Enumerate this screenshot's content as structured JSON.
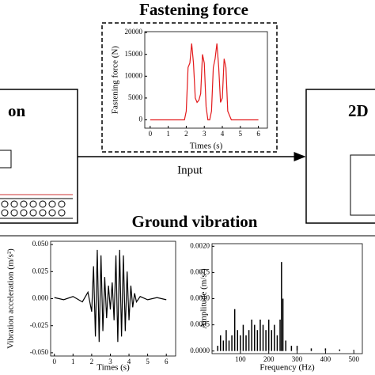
{
  "labels": {
    "fastening_title": "Fastening force",
    "left_box": "on",
    "right_box": "2D",
    "arrow": "Input",
    "ground_title": "Ground vibration"
  },
  "chart_data": [
    {
      "type": "line",
      "xlabel": "Times (s)",
      "ylabel": "Fastening force (N)",
      "color": "#e31a1c",
      "x": [
        0,
        0.5,
        1,
        1.5,
        1.9,
        2.0,
        2.1,
        2.2,
        2.3,
        2.4,
        2.5,
        2.6,
        2.7,
        2.8,
        2.9,
        3.0,
        3.1,
        3.2,
        3.3,
        3.4,
        3.5,
        3.6,
        3.7,
        3.8,
        3.9,
        4.0,
        4.1,
        4.2,
        4.3,
        4.5,
        5,
        5.5,
        6
      ],
      "values": [
        0,
        0,
        0,
        0,
        0,
        2000,
        12000,
        13000,
        17500,
        13000,
        5000,
        4000,
        4500,
        6000,
        15000,
        13000,
        3000,
        0,
        0,
        2000,
        12000,
        14000,
        17500,
        12000,
        4000,
        5000,
        14000,
        12000,
        2000,
        0,
        0,
        0,
        0
      ],
      "xlim": [
        -0.3,
        6.5
      ],
      "ylim": [
        -1900,
        20200
      ],
      "xticks": [
        0,
        1,
        2,
        3,
        4,
        5,
        6
      ],
      "yticks": [
        0,
        5000,
        10000,
        15000,
        20000
      ]
    },
    {
      "type": "line",
      "xlabel": "Times (s)",
      "ylabel": "Vibration acceleration (m/s²)",
      "color": "#000000",
      "x": [
        0,
        0.5,
        1,
        1.5,
        1.8,
        2.0,
        2.1,
        2.2,
        2.3,
        2.4,
        2.5,
        2.6,
        2.7,
        2.8,
        2.9,
        3.0,
        3.1,
        3.2,
        3.3,
        3.4,
        3.5,
        3.6,
        3.7,
        3.8,
        3.9,
        4.0,
        4.1,
        4.2,
        4.3,
        4.4,
        4.6,
        5,
        5.5,
        6
      ],
      "values": [
        0.001,
        -0.001,
        0.002,
        -0.003,
        0.006,
        -0.012,
        0.03,
        -0.035,
        0.045,
        -0.04,
        0.04,
        -0.03,
        0.02,
        -0.018,
        0.012,
        -0.01,
        0.015,
        -0.02,
        0.04,
        -0.04,
        0.045,
        -0.035,
        0.04,
        -0.03,
        0.025,
        -0.02,
        0.012,
        -0.008,
        0.005,
        -0.003,
        0.002,
        -0.001,
        0.001,
        -0.001
      ],
      "xlim": [
        -0.2,
        6.5
      ],
      "ylim": [
        -0.053,
        0.053
      ],
      "xticks": [
        0,
        1,
        2,
        3,
        4,
        5,
        6
      ],
      "yticks": [
        {
          "value": -0.05,
          "label": "-0.050"
        },
        {
          "value": -0.025,
          "label": "-0.025"
        },
        {
          "value": 0,
          "label": "0.000"
        },
        {
          "value": 0.025,
          "label": "0.025"
        },
        {
          "value": 0.05,
          "label": "0.050"
        }
      ]
    },
    {
      "type": "stem",
      "xlabel": "Frequency (Hz)",
      "ylabel": "Amplitude (m/s²)",
      "color": "#000000",
      "x": [
        20,
        30,
        40,
        50,
        60,
        70,
        80,
        90,
        100,
        110,
        120,
        130,
        140,
        150,
        160,
        170,
        180,
        190,
        200,
        210,
        220,
        230,
        240,
        245,
        250,
        260,
        280,
        300,
        350,
        400,
        450,
        500
      ],
      "values": [
        0.0001,
        0.0003,
        0.0002,
        0.0004,
        0.0002,
        0.0003,
        0.0008,
        0.0004,
        0.0003,
        0.0005,
        0.0003,
        0.0004,
        0.0006,
        0.0005,
        0.0004,
        0.0006,
        0.0005,
        0.0004,
        0.0006,
        0.0004,
        0.0005,
        0.0003,
        0.0006,
        0.0017,
        0.001,
        0.0002,
        0.0001,
        0.0001,
        5e-05,
        5e-05,
        3e-05,
        2e-05
      ],
      "xlim": [
        0,
        530
      ],
      "ylim": [
        -5e-05,
        0.00205
      ],
      "xticks": [
        100,
        200,
        300,
        400,
        500
      ],
      "yticks": [
        {
          "value": 0,
          "label": "0.0000"
        },
        {
          "value": 0.0005,
          "label": "0.0005"
        },
        {
          "value": 0.001,
          "label": "0.0010"
        },
        {
          "value": 0.0015,
          "label": "0.0015"
        },
        {
          "value": 0.002,
          "label": "0.0020"
        }
      ]
    }
  ]
}
